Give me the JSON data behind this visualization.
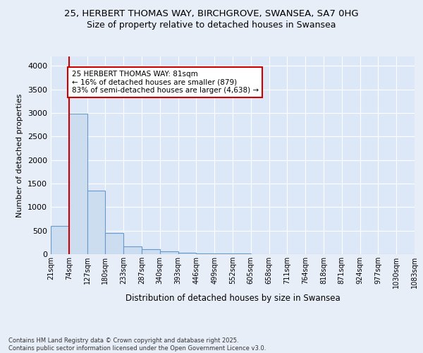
{
  "title_line1": "25, HERBERT THOMAS WAY, BIRCHGROVE, SWANSEA, SA7 0HG",
  "title_line2": "Size of property relative to detached houses in Swansea",
  "xlabel": "Distribution of detached houses by size in Swansea",
  "ylabel": "Number of detached properties",
  "bin_labels": [
    "21sqm",
    "74sqm",
    "127sqm",
    "180sqm",
    "233sqm",
    "287sqm",
    "340sqm",
    "393sqm",
    "446sqm",
    "499sqm",
    "552sqm",
    "605sqm",
    "658sqm",
    "711sqm",
    "764sqm",
    "818sqm",
    "871sqm",
    "924sqm",
    "977sqm",
    "1030sqm",
    "1083sqm"
  ],
  "bar_values": [
    600,
    2980,
    1350,
    450,
    160,
    100,
    60,
    30,
    18,
    12,
    8,
    6,
    5,
    4,
    3,
    3,
    2,
    2,
    2,
    2
  ],
  "bar_color": "#ccddf0",
  "bar_edge_color": "#6699cc",
  "bar_edge_width": 0.8,
  "vline_x_bar_index": 1,
  "vline_color": "#cc0000",
  "annotation_text": "25 HERBERT THOMAS WAY: 81sqm\n← 16% of detached houses are smaller (879)\n83% of semi-detached houses are larger (4,638) →",
  "annotation_box_color": "#cc0000",
  "annotation_text_color": "#000000",
  "annotation_fontsize": 7.5,
  "ylim": [
    0,
    4200
  ],
  "yticks": [
    0,
    500,
    1000,
    1500,
    2000,
    2500,
    3000,
    3500,
    4000
  ],
  "background_color": "#e8eef8",
  "footer_text": "Contains HM Land Registry data © Crown copyright and database right 2025.\nContains public sector information licensed under the Open Government Licence v3.0.",
  "title_fontsize": 9.5,
  "subtitle_fontsize": 9,
  "grid_color": "#ffffff",
  "axis_bg_color": "#dce8f8"
}
